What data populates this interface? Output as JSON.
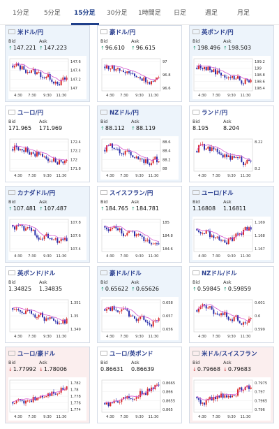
{
  "tabs": [
    {
      "label": "1分足",
      "active": false
    },
    {
      "label": "5分足",
      "active": false
    },
    {
      "label": "15分足",
      "active": true
    },
    {
      "label": "30分足",
      "active": false
    },
    {
      "label": "1時間足",
      "active": false
    },
    {
      "label": "日足",
      "active": false
    },
    {
      "label": "週足",
      "active": false
    },
    {
      "label": "月足",
      "active": false
    }
  ],
  "labels": {
    "bid": "Bid",
    "ask": "Ask"
  },
  "colors": {
    "candle_up": "#d72b2b",
    "candle_down": "#2a2faa",
    "ma_line": "#d040c8",
    "link": "#2a3f8f"
  },
  "pairs": [
    {
      "name": "米ドル/円",
      "flags": [
        "us",
        "jp"
      ],
      "bg": "blue",
      "dir": "up",
      "bid": "147.221",
      "ask": "147.223",
      "yticks": [
        "147.6",
        "147.4",
        "147.2",
        "147"
      ],
      "xticks": [
        "4:30",
        "7:30",
        "9:30",
        "11:30"
      ],
      "trend": "down"
    },
    {
      "name": "豪ドル/円",
      "flags": [
        "au",
        "jp"
      ],
      "bg": "white",
      "dir": "up",
      "bid": "96.610",
      "ask": "96.615",
      "yticks": [
        "97",
        "96.8",
        "96.6"
      ],
      "xticks": [
        "4:30",
        "7:30",
        "9:30",
        "11:30"
      ],
      "trend": "down"
    },
    {
      "name": "英ポンド/円",
      "flags": [
        "gb",
        "jp"
      ],
      "bg": "blue",
      "dir": "up",
      "bid": "198.496",
      "ask": "198.503",
      "yticks": [
        "199.2",
        "199",
        "198.8",
        "198.6",
        "198.4"
      ],
      "xticks": [
        "4:30",
        "7:30",
        "9:30",
        "11:30"
      ],
      "trend": "down"
    },
    {
      "name": "ユーロ/円",
      "flags": [
        "eu",
        "jp"
      ],
      "bg": "white",
      "dir": "none",
      "bid": "171.965",
      "ask": "171.969",
      "yticks": [
        "172.4",
        "172.2",
        "172",
        "171.8"
      ],
      "xticks": [
        "4:30",
        "7:30",
        "9:30",
        "11:30"
      ],
      "trend": "down"
    },
    {
      "name": "NZドル/円",
      "flags": [
        "nz",
        "jp"
      ],
      "bg": "blue",
      "dir": "up",
      "bid": "88.112",
      "ask": "88.119",
      "yticks": [
        "88.6",
        "88.4",
        "88.2",
        "88"
      ],
      "xticks": [
        "4:30",
        "7:30",
        "9:30",
        "11:30"
      ],
      "trend": "down"
    },
    {
      "name": "ランド/円",
      "flags": [
        "za",
        "jp"
      ],
      "bg": "white",
      "dir": "none",
      "bid": "8.195",
      "ask": "8.204",
      "yticks": [
        "8.22",
        "8.2"
      ],
      "xticks": [
        "4:30",
        "7:30",
        "9:30",
        "11:30"
      ],
      "trend": "down"
    },
    {
      "name": "カナダドル/円",
      "flags": [
        "ca",
        "jp"
      ],
      "bg": "blue",
      "dir": "up",
      "bid": "107.481",
      "ask": "107.487",
      "yticks": [
        "107.8",
        "107.6",
        "107.4"
      ],
      "xticks": [
        "4:30",
        "7:30",
        "9:30",
        "11:30"
      ],
      "trend": "down"
    },
    {
      "name": "スイスフラン/円",
      "flags": [
        "ch",
        "jp"
      ],
      "bg": "white",
      "dir": "up",
      "bid": "184.765",
      "ask": "184.781",
      "yticks": [
        "185",
        "184.8",
        "184.6"
      ],
      "xticks": [
        "4:30",
        "7:30",
        "9:30",
        "11:30"
      ],
      "trend": "down"
    },
    {
      "name": "ユーロ/ドル",
      "flags": [
        "eu",
        "us"
      ],
      "bg": "blue",
      "dir": "none",
      "bid": "1.16808",
      "ask": "1.16811",
      "yticks": [
        "1.169",
        "1.168",
        "1.167"
      ],
      "xticks": [
        "4:30",
        "7:30",
        "9:30",
        "11:30"
      ],
      "trend": "vshape"
    },
    {
      "name": "英ポンド/ドル",
      "flags": [
        "gb",
        "us"
      ],
      "bg": "white",
      "dir": "none",
      "bid": "1.34825",
      "ask": "1.34835",
      "yticks": [
        "1.351",
        "1.35",
        "1.349"
      ],
      "xticks": [
        "4:30",
        "7:30",
        "9:30",
        "11:30"
      ],
      "trend": "down"
    },
    {
      "name": "豪ドル/ドル",
      "flags": [
        "au",
        "us"
      ],
      "bg": "blue",
      "dir": "up",
      "bid": "0.65622",
      "ask": "0.65626",
      "yticks": [
        "0.658",
        "0.657",
        "0.656"
      ],
      "xticks": [
        "4:30",
        "7:30",
        "9:30",
        "11:30"
      ],
      "trend": "down"
    },
    {
      "name": "NZドル/ドル",
      "flags": [
        "nz",
        "us"
      ],
      "bg": "white",
      "dir": "up",
      "bid": "0.59845",
      "ask": "0.59859",
      "yticks": [
        "0.601",
        "0.6",
        "0.599"
      ],
      "xticks": [
        "4:30",
        "7:30",
        "9:30",
        "11:30"
      ],
      "trend": "down"
    },
    {
      "name": "ユーロ/豪ドル",
      "flags": [
        "eu",
        "au"
      ],
      "bg": "pink",
      "dir": "down",
      "bid": "1.77992",
      "ask": "1.78006",
      "yticks": [
        "1.782",
        "1.78",
        "1.778",
        "1.776",
        "1.774"
      ],
      "xticks": [
        "4:30",
        "7:30",
        "9:30",
        "11:30"
      ],
      "trend": "up"
    },
    {
      "name": "ユーロ/英ポンド",
      "flags": [
        "eu",
        "gb"
      ],
      "bg": "white",
      "dir": "none",
      "bid": "0.86631",
      "ask": "0.86639",
      "yticks": [
        "0.8665",
        "0.866",
        "0.8655",
        "0.865"
      ],
      "xticks": [
        "4:30",
        "7:30",
        "9:30",
        "11:30"
      ],
      "trend": "up"
    },
    {
      "name": "米ドル/スイスフラン",
      "flags": [
        "us",
        "ch"
      ],
      "bg": "pink",
      "dir": "down",
      "bid": "0.79668",
      "ask": "0.79683",
      "yticks": [
        "0.7975",
        "0.797",
        "0.7965",
        "0.796"
      ],
      "xticks": [
        "4:30",
        "7:30",
        "9:30",
        "11:30"
      ],
      "trend": "up"
    }
  ]
}
